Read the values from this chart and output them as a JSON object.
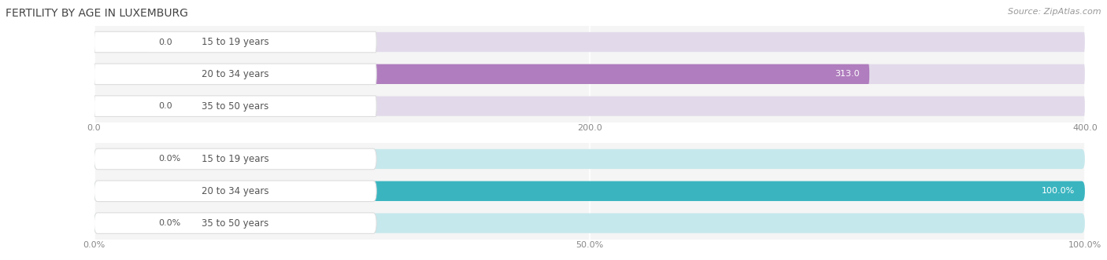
{
  "title": "FERTILITY BY AGE IN LUXEMBURG",
  "source": "Source: ZipAtlas.com",
  "top_chart": {
    "categories": [
      "15 to 19 years",
      "20 to 34 years",
      "35 to 50 years"
    ],
    "values": [
      0.0,
      313.0,
      0.0
    ],
    "xlim": [
      0,
      400.0
    ],
    "xticks": [
      0.0,
      200.0,
      400.0
    ],
    "bar_color": "#b07dbe",
    "bar_bg_color": "#e2daea",
    "label_bg_color": "#f5f3f7",
    "label_color": "#555555"
  },
  "bottom_chart": {
    "categories": [
      "15 to 19 years",
      "20 to 34 years",
      "35 to 50 years"
    ],
    "values": [
      0.0,
      100.0,
      0.0
    ],
    "xlim": [
      0,
      100.0
    ],
    "xticks": [
      0.0,
      50.0,
      100.0
    ],
    "xticklabels": [
      "0.0%",
      "50.0%",
      "100.0%"
    ],
    "bar_color": "#3ab5c0",
    "bar_bg_color": "#c5e8ec",
    "label_bg_color": "#f0f9fa",
    "label_color": "#555555"
  },
  "title_fontsize": 10,
  "source_fontsize": 8,
  "label_fontsize": 8.5,
  "value_fontsize": 8,
  "tick_fontsize": 8,
  "title_color": "#444444",
  "source_color": "#999999",
  "bg_color": "#ffffff",
  "bar_height": 0.62,
  "chart_bg": "#f5f5f5"
}
